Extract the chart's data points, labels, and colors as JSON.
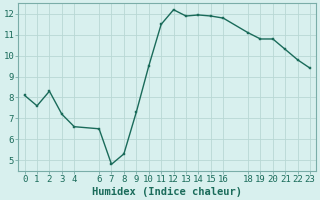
{
  "x": [
    0,
    1,
    2,
    3,
    4,
    6,
    7,
    8,
    9,
    10,
    11,
    12,
    13,
    14,
    15,
    16,
    18,
    19,
    20,
    21,
    22,
    23
  ],
  "y": [
    8.1,
    7.6,
    8.3,
    7.2,
    6.6,
    6.5,
    4.8,
    5.3,
    7.3,
    9.5,
    11.5,
    12.2,
    11.9,
    11.95,
    11.9,
    11.8,
    11.1,
    10.8,
    10.8,
    10.3,
    9.8,
    9.4
  ],
  "line_color": "#1a6b5a",
  "marker_color": "#1a6b5a",
  "bg_color": "#d8f0ee",
  "grid_color": "#b8d8d4",
  "xlabel": "Humidex (Indice chaleur)",
  "xlim": [
    -0.5,
    23.5
  ],
  "ylim": [
    4.5,
    12.5
  ],
  "xticks": [
    0,
    1,
    2,
    3,
    4,
    6,
    7,
    8,
    9,
    10,
    11,
    12,
    13,
    14,
    15,
    16,
    18,
    19,
    20,
    21,
    22,
    23
  ],
  "xtick_labels": [
    "0",
    "1",
    "2",
    "3",
    "4",
    "6",
    "7",
    "8",
    "9",
    "10",
    "11",
    "12",
    "13",
    "14",
    "15",
    "16",
    "18",
    "19",
    "20",
    "21",
    "22",
    "23"
  ],
  "yticks": [
    5,
    6,
    7,
    8,
    9,
    10,
    11,
    12
  ],
  "tick_fontsize": 6.5,
  "xlabel_fontsize": 7.5,
  "linewidth": 1.0,
  "markersize": 2.0
}
